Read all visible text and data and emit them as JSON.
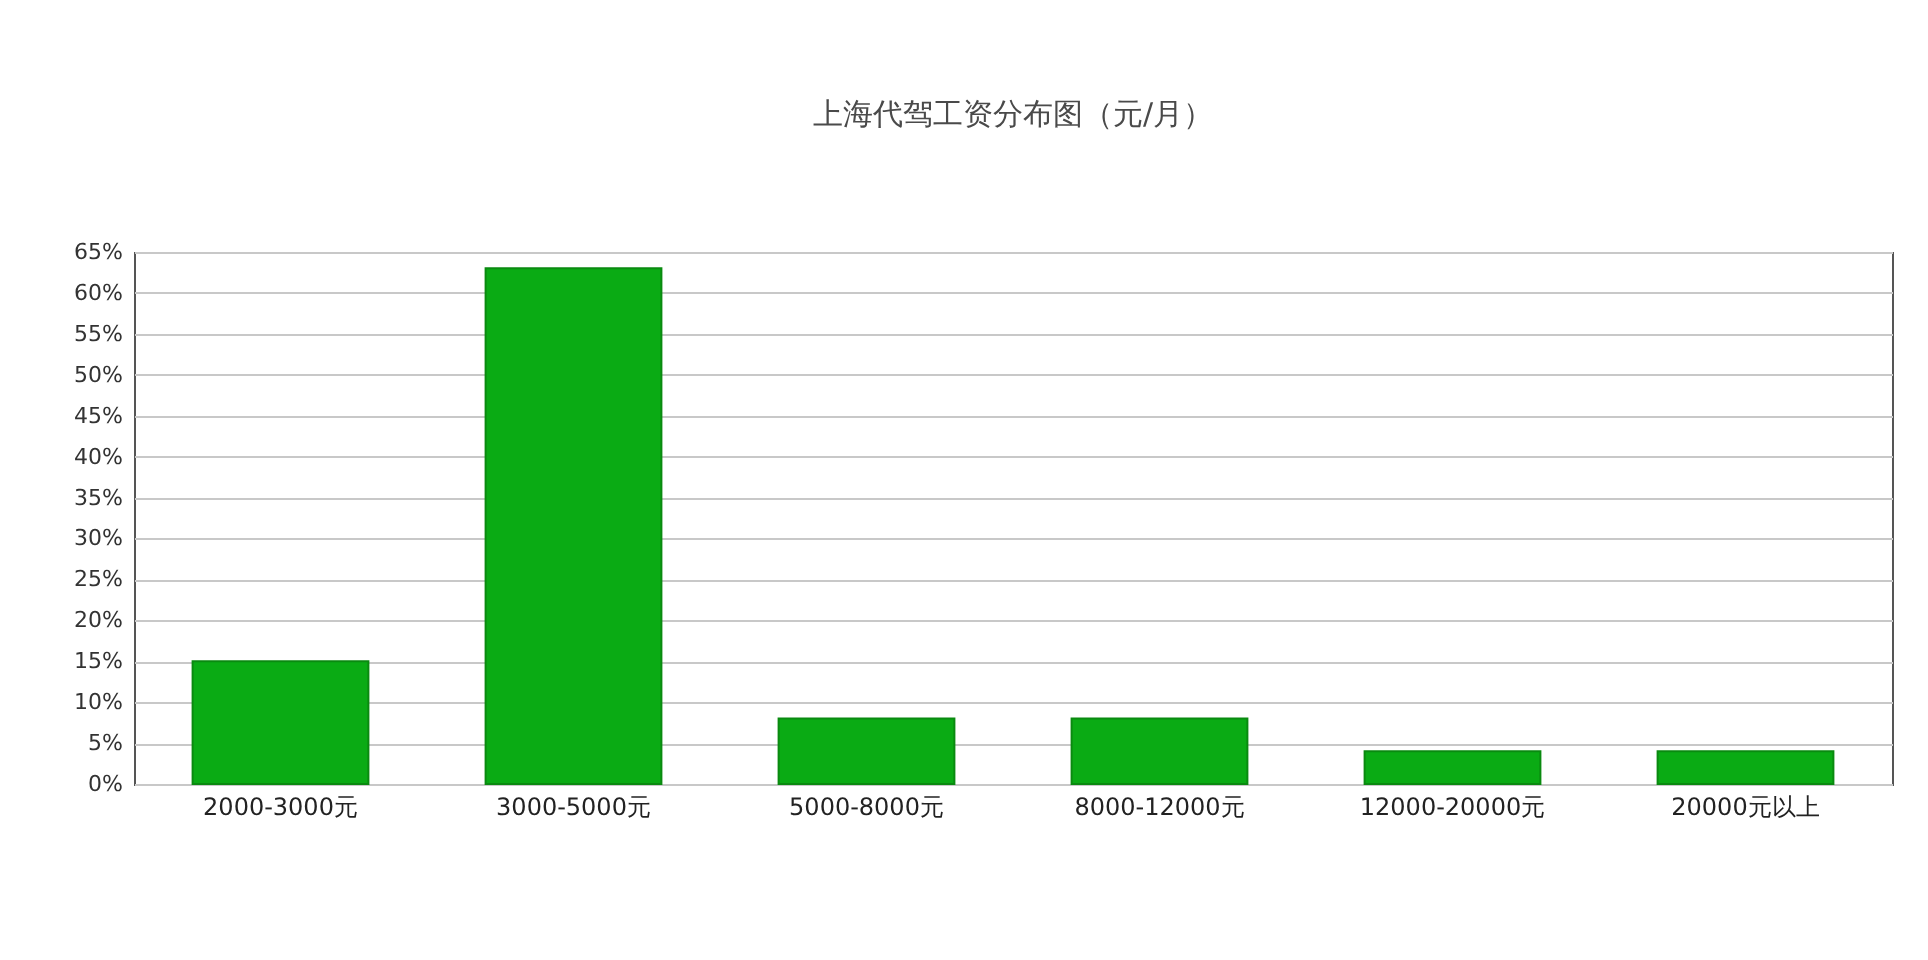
{
  "chart_data": {
    "type": "bar",
    "title": "上海代驾工资分布图（元/月）",
    "categories": [
      "2000-3000元",
      "3000-5000元",
      "5000-8000元",
      "8000-12000元",
      "12000-20000元",
      "20000元以上"
    ],
    "values": [
      15,
      63,
      8,
      8,
      4,
      4
    ],
    "color": "#0aab14",
    "ylim": [
      0,
      65
    ],
    "yticks": [
      {
        "value": 0,
        "label": "0%"
      },
      {
        "value": 5,
        "label": "5%"
      },
      {
        "value": 10,
        "label": "10%"
      },
      {
        "value": 15,
        "label": "15%"
      },
      {
        "value": 20,
        "label": "20%"
      },
      {
        "value": 25,
        "label": "25%"
      },
      {
        "value": 30,
        "label": "30%"
      },
      {
        "value": 35,
        "label": "35%"
      },
      {
        "value": 40,
        "label": "40%"
      },
      {
        "value": 45,
        "label": "45%"
      },
      {
        "value": 50,
        "label": "50%"
      },
      {
        "value": 55,
        "label": "55%"
      },
      {
        "value": 60,
        "label": "60%"
      },
      {
        "value": 65,
        "label": "65%"
      }
    ],
    "grid": "y"
  }
}
